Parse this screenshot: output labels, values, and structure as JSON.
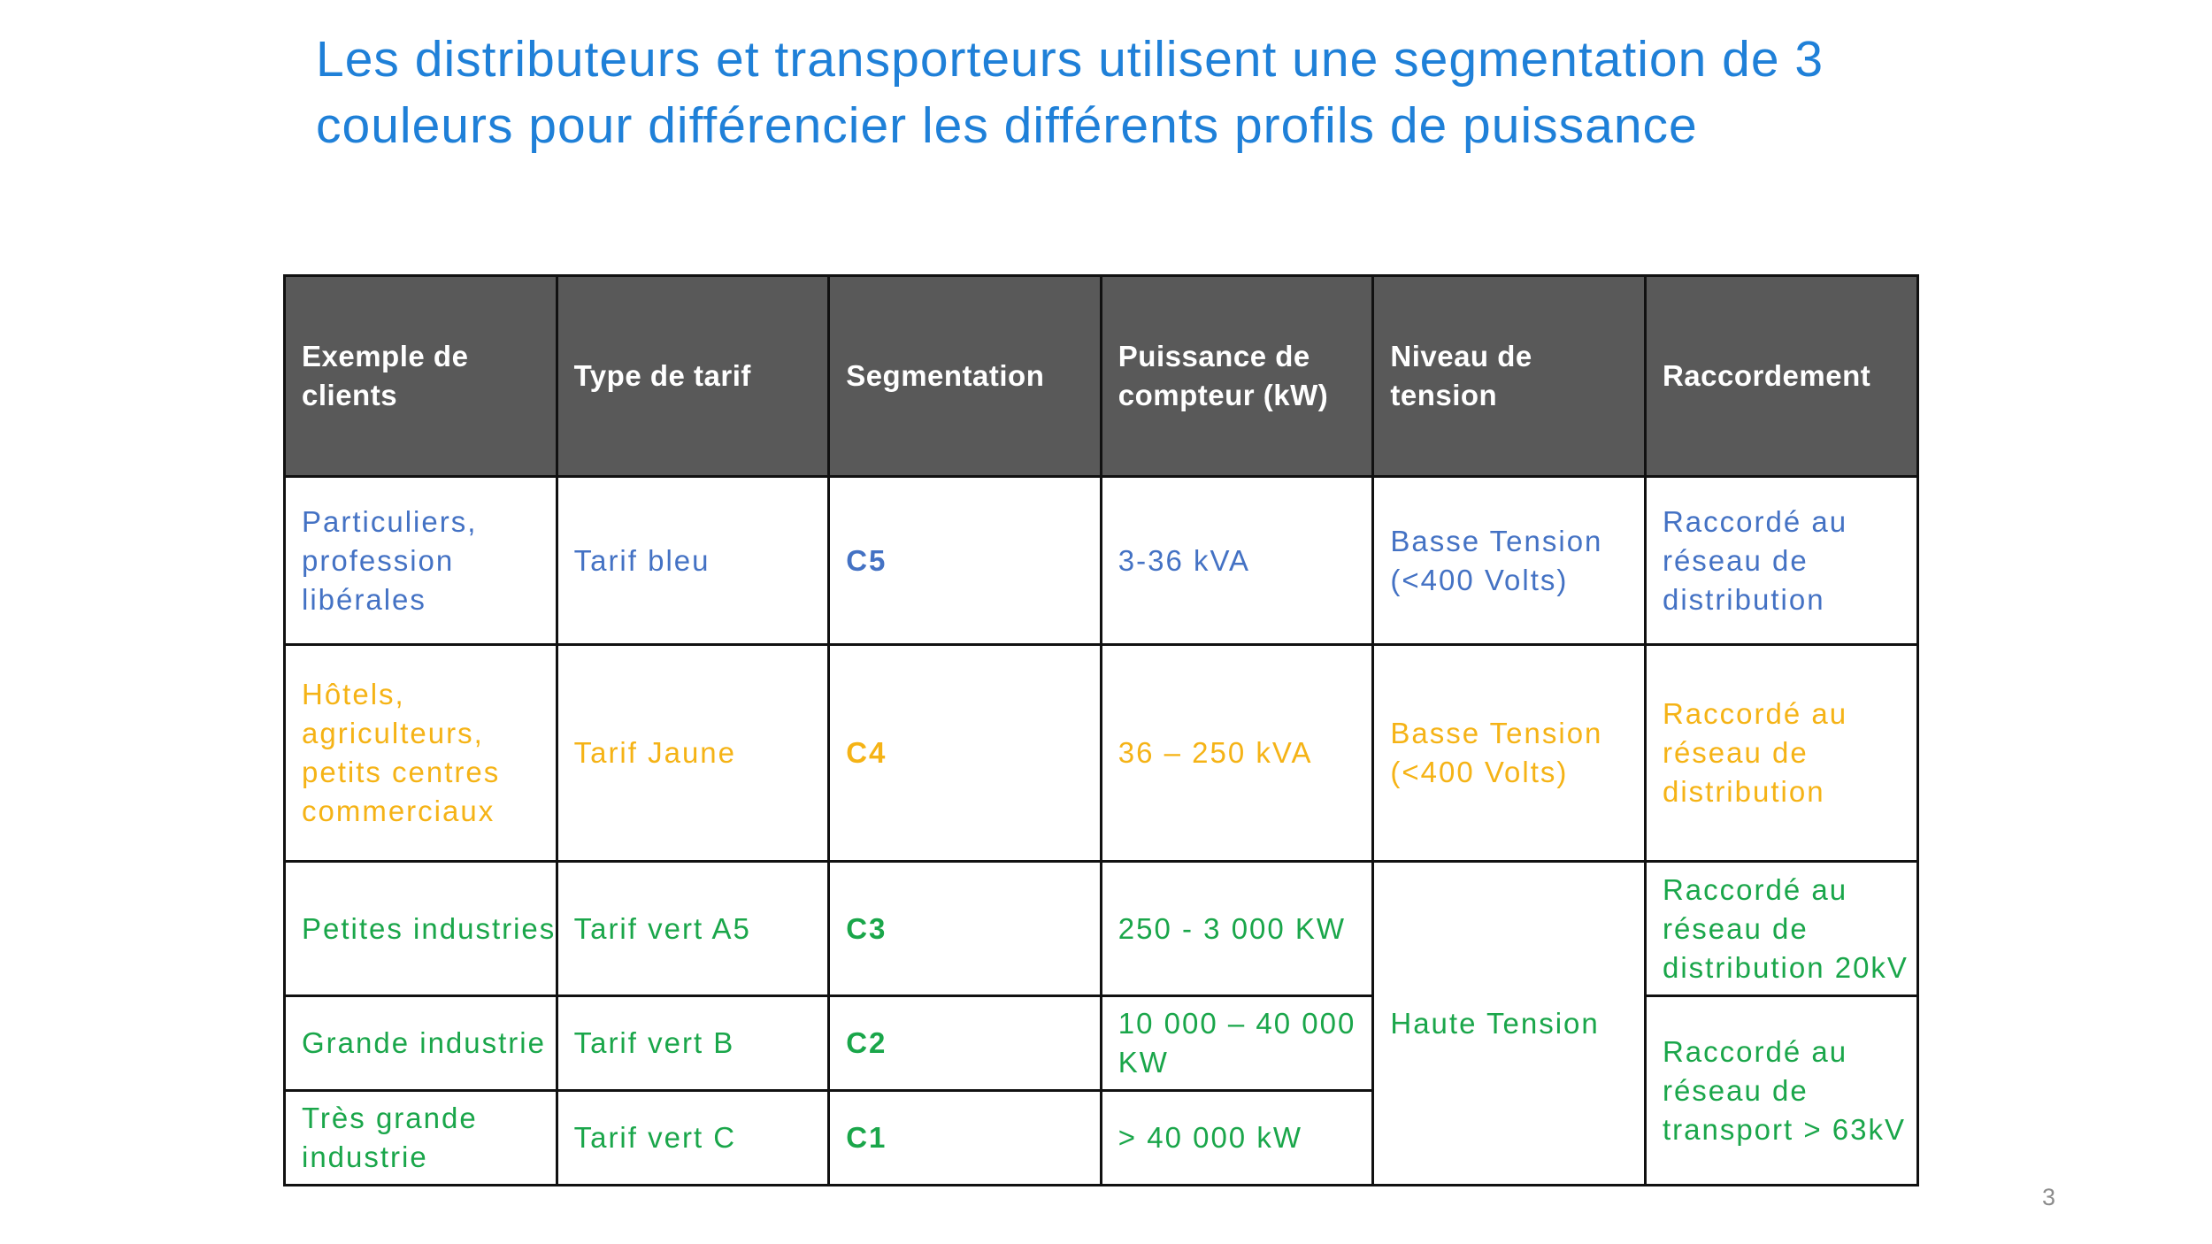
{
  "title": {
    "line1": "Les distributeurs et transporteurs utilisent une segmentation de 3",
    "line2": "couleurs pour différencier les différents profils de puissance"
  },
  "table": {
    "headers": {
      "clients": "Exemple de clients",
      "tarif": "Type de tarif",
      "segmentation": "Segmentation",
      "puissance": "Puissance de compteur (kW)",
      "tension": "Niveau de tension",
      "raccordement": "Raccordement"
    },
    "rows": {
      "c5": {
        "clients": "Particuliers, profession libérales",
        "tarif": "Tarif bleu",
        "segmentation": "C5",
        "puissance": "3-36 kVA",
        "tension": "Basse Tension (<400 Volts)",
        "raccordement": "Raccordé au réseau de distribution"
      },
      "c4": {
        "clients": "Hôtels, agriculteurs, petits centres commerciaux",
        "tarif": "Tarif Jaune",
        "segmentation": "C4",
        "puissance": "36 – 250 kVA",
        "tension": "Basse Tension (<400 Volts)",
        "raccordement": "Raccordé au réseau de distribution"
      },
      "c3": {
        "clients": "Petites industries",
        "tarif": "Tarif vert A5",
        "segmentation": "C3",
        "puissance": "250 - 3 000 KW",
        "raccordement": "Raccordé au réseau de distribution 20kV"
      },
      "c2": {
        "clients": "Grande industrie",
        "tarif": "Tarif vert B",
        "segmentation": "C2",
        "puissance": "10 000 – 40 000 KW"
      },
      "c1": {
        "clients": "Très grande industrie",
        "tarif": "Tarif vert C",
        "segmentation": "C1",
        "puissance": "> 40 000 kW"
      }
    },
    "merged": {
      "haute_tension": "Haute Tension",
      "raccordement_transport": "Raccordé au réseau de transport > 63kV"
    }
  },
  "colors": {
    "title": "#1f80d8",
    "header_bg": "#595959",
    "blue": "#4472c4",
    "yellow": "#f5b316",
    "green": "#1aa64a"
  },
  "page_number": "3"
}
